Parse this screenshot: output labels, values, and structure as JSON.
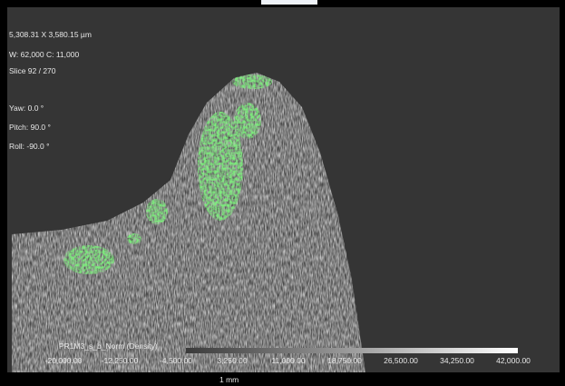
{
  "overlay": {
    "dimensions": "5,308.31 X 3,580.15 µm",
    "window": "W: 62,000 C: 11,000",
    "slice": "Slice 92 / 270",
    "yaw": "Yaw: 0.0 °",
    "pitch": "Pitch: 90.0 °",
    "roll": "Roll: -90.0 °"
  },
  "colorbar": {
    "label": "PR1M3_s_b_Norm (Density)",
    "ticks": [
      "-20,000.00",
      "-12,250.00",
      "-4,500.00",
      "3,250.00",
      "11,000.00",
      "18,750.00",
      "26,500.00",
      "34,250.00",
      "42,000.00"
    ]
  },
  "scale_bar": "1 mm"
}
